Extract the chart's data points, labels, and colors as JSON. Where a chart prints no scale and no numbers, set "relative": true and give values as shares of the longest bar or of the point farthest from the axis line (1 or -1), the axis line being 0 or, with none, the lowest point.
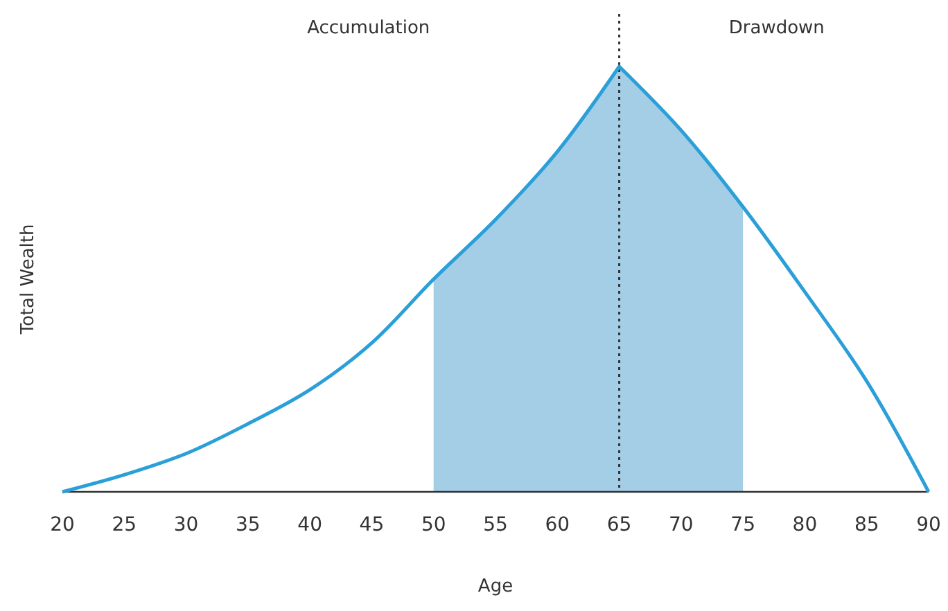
{
  "chart_data": {
    "type": "line",
    "relative": true,
    "xlabel": "Age",
    "ylabel": "Total Wealth",
    "x": [
      20,
      25,
      30,
      35,
      40,
      45,
      50,
      55,
      60,
      65,
      70,
      75,
      80,
      85,
      90
    ],
    "series": [
      {
        "color": "#2b9fd8",
        "values": [
          0,
          0.04,
          0.09,
          0.16,
          0.24,
          0.35,
          0.5,
          0.64,
          0.8,
          1,
          0.85,
          0.67,
          0.47,
          0.26,
          0
        ]
      }
    ],
    "xlim": [
      20,
      90
    ],
    "xticks": [
      20,
      25,
      30,
      35,
      40,
      45,
      50,
      55,
      60,
      65,
      70,
      75,
      80,
      85,
      90
    ],
    "bands": [
      {
        "axis": "x",
        "from": 50,
        "to": 75,
        "color": "#a4cde6"
      }
    ],
    "ref_lines": [
      {
        "axis": "x",
        "value": 65,
        "line_style": "dotted",
        "color": "#333333"
      }
    ],
    "annotations": [
      "Accumulation",
      "Drawdown"
    ],
    "grid": false,
    "marker": "none",
    "line_style": "solid"
  }
}
